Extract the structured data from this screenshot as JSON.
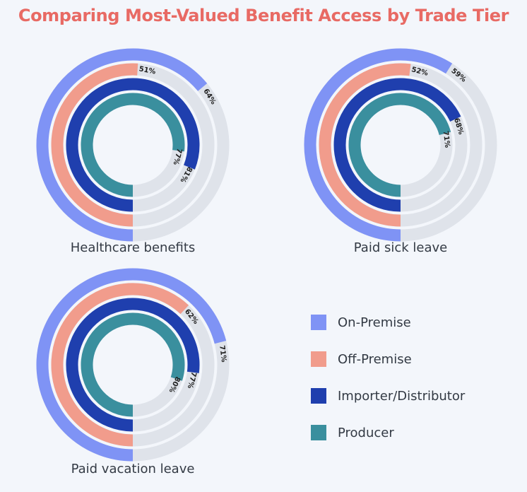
{
  "title": "Comparing Most-Valued Benefit Access by Trade Tier",
  "colors": {
    "track": "#dfe3ea",
    "on_premise": "#7f93f5",
    "off_premise": "#f19c8c",
    "importer_distributor": "#1f3fae",
    "producer": "#3a8f9e",
    "title": "#e86a64"
  },
  "legend": [
    {
      "label": "On-Premise",
      "color": "#7f93f5"
    },
    {
      "label": "Off-Premise",
      "color": "#f19c8c"
    },
    {
      "label": "Importer/Distributor",
      "color": "#1f3fae"
    },
    {
      "label": "Producer",
      "color": "#3a8f9e"
    }
  ],
  "chart_data": [
    {
      "type": "radial-bar",
      "title": "Healthcare benefits",
      "series": [
        {
          "name": "On-Premise",
          "value": 64,
          "label": "64%"
        },
        {
          "name": "Off-Premise",
          "value": 51,
          "label": "51%"
        },
        {
          "name": "Importer/Distributor",
          "value": 81,
          "label": "81%"
        },
        {
          "name": "Producer",
          "value": 77,
          "label": "77%"
        }
      ]
    },
    {
      "type": "radial-bar",
      "title": "Paid sick leave",
      "series": [
        {
          "name": "On-Premise",
          "value": 59,
          "label": "59%"
        },
        {
          "name": "Off-Premise",
          "value": 52,
          "label": "52%"
        },
        {
          "name": "Importer/Distributor",
          "value": 68,
          "label": "68%"
        },
        {
          "name": "Producer",
          "value": 71,
          "label": "71%"
        }
      ]
    },
    {
      "type": "radial-bar",
      "title": "Paid vacation leave",
      "series": [
        {
          "name": "On-Premise",
          "value": 71,
          "label": "71%"
        },
        {
          "name": "Off-Premise",
          "value": 62,
          "label": "62%"
        },
        {
          "name": "Importer/Distributor",
          "value": 77,
          "label": "77%"
        },
        {
          "name": "Producer",
          "value": 80,
          "label": "80%"
        }
      ]
    }
  ]
}
